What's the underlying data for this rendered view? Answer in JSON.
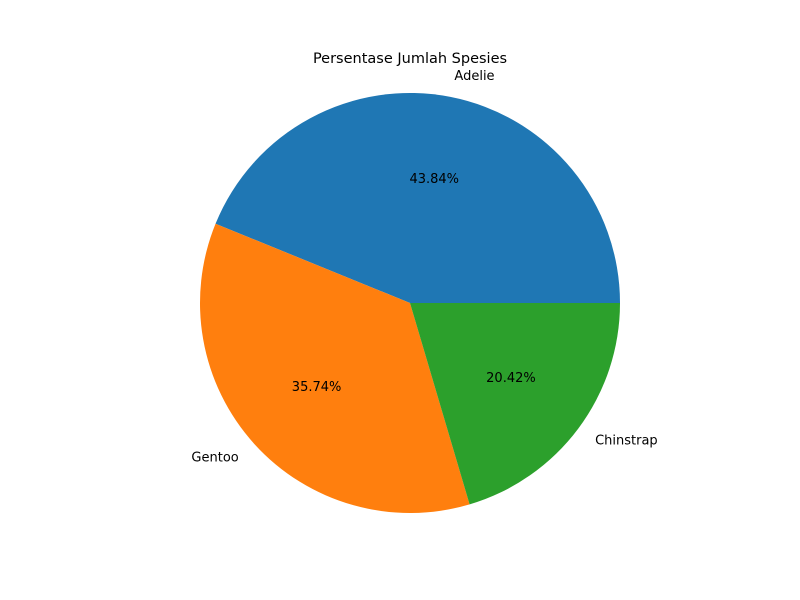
{
  "chart_data": {
    "type": "pie",
    "title": "Persentase Jumlah Spesies",
    "categories": [
      "Adelie",
      "Gentoo",
      "Chinstrap"
    ],
    "values": [
      43.84,
      35.74,
      20.42
    ],
    "value_labels": [
      "43.84%",
      "35.74%",
      "20.42%"
    ],
    "colors": [
      "#1f77b4",
      "#ff7f0e",
      "#2ca02c"
    ],
    "start_angle": "0 degrees (3 o'clock), counter-clockwise",
    "legend": "none",
    "grid": false
  }
}
